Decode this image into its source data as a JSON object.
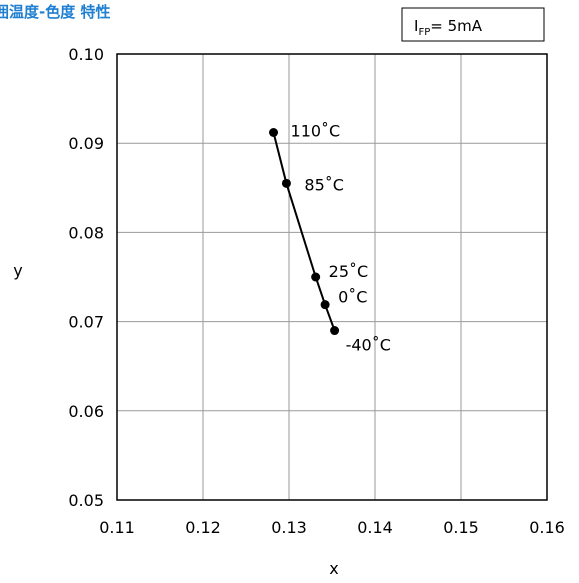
{
  "chart_data": {
    "type": "line",
    "title": "囲温度-色度 特性",
    "xlabel": "x",
    "ylabel": "y",
    "xlim": [
      0.11,
      0.16
    ],
    "ylim": [
      0.05,
      0.1
    ],
    "x_ticks": [
      "0.11",
      "0.12",
      "0.13",
      "0.14",
      "0.15",
      "0.16"
    ],
    "y_ticks": [
      "0.05",
      "0.06",
      "0.07",
      "0.08",
      "0.09",
      "0.10"
    ],
    "grid": true,
    "condition": {
      "main": "I",
      "sub": "FP",
      "rest": "= 5mA"
    },
    "points": [
      {
        "x": 0.1282,
        "y": 0.0912,
        "label": "110˚C"
      },
      {
        "x": 0.1297,
        "y": 0.0855,
        "label": "85˚C"
      },
      {
        "x": 0.1331,
        "y": 0.075,
        "label": "25˚C"
      },
      {
        "x": 0.1342,
        "y": 0.0719,
        "label": "0˚C"
      },
      {
        "x": 0.1353,
        "y": 0.069,
        "label": "-40˚C"
      }
    ]
  }
}
